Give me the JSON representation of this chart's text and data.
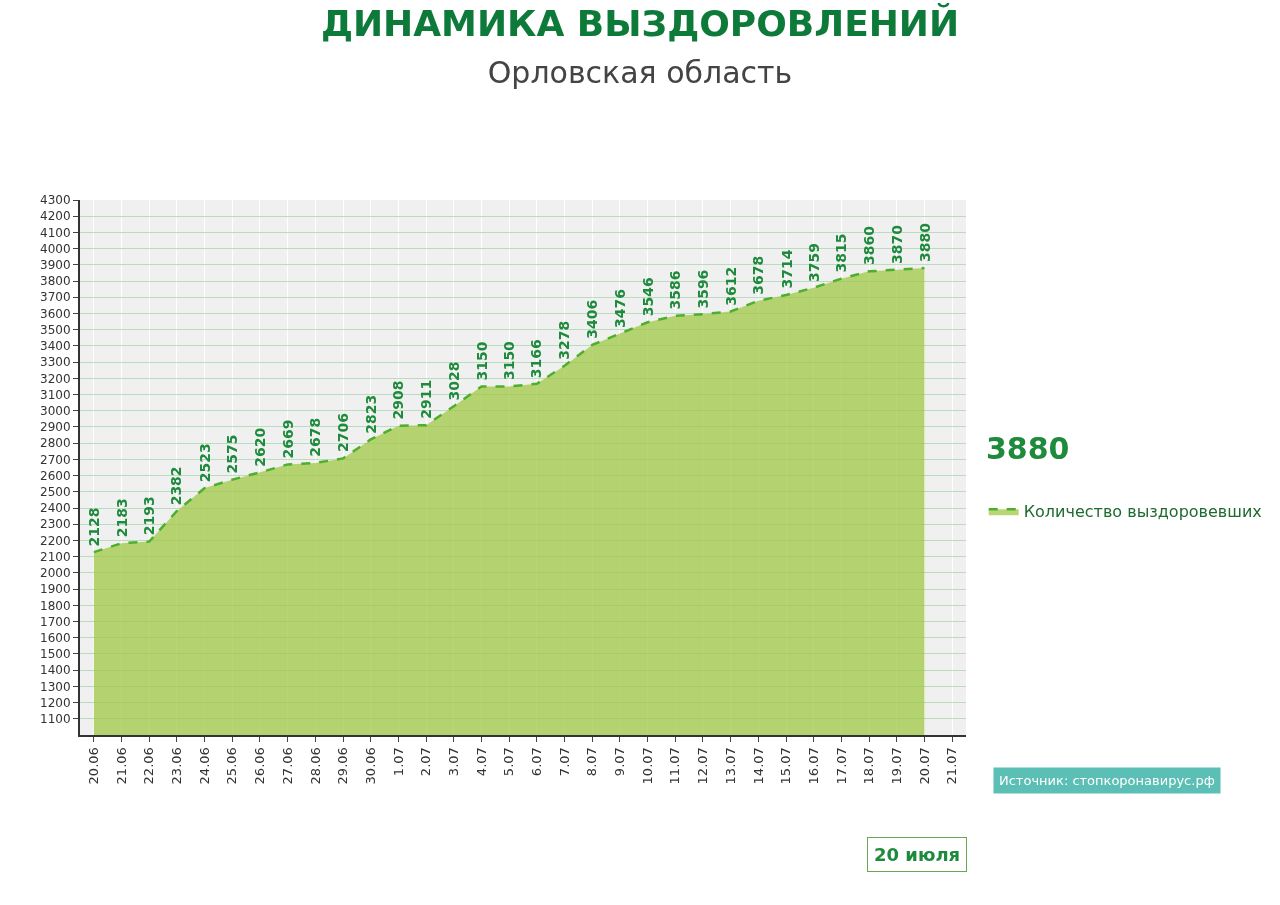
{
  "chart_data": {
    "type": "area",
    "title": "ДИНАМИКА ВЫЗДОРОВЛЕНИЙ",
    "subtitle": "Орловская область",
    "categories": [
      "20.06",
      "21.06",
      "22.06",
      "23.06",
      "24.06",
      "25.06",
      "26.06",
      "27.06",
      "28.06",
      "29.06",
      "30.06",
      "1.07",
      "2.07",
      "3.07",
      "4.07",
      "5.07",
      "6.07",
      "7.07",
      "8.07",
      "9.07",
      "10.07",
      "11.07",
      "12.07",
      "13.07",
      "14.07",
      "15.07",
      "16.07",
      "17.07",
      "18.07",
      "19.07",
      "20.07",
      "21.07"
    ],
    "series": [
      {
        "name": "Количество выздоровевших",
        "color": "#4caf2e",
        "values": [
          2128,
          2183,
          2193,
          2382,
          2523,
          2575,
          2620,
          2669,
          2678,
          2706,
          2823,
          2908,
          2911,
          3028,
          3150,
          3150,
          3166,
          3278,
          3406,
          3476,
          3546,
          3586,
          3596,
          3612,
          3678,
          3714,
          3759,
          3815,
          3860,
          3870,
          3880,
          null
        ]
      }
    ],
    "ylim": [
      1000,
      4300
    ],
    "yticks": [
      1100,
      1200,
      1300,
      1400,
      1500,
      1600,
      1700,
      1800,
      1900,
      2000,
      2100,
      2200,
      2300,
      2400,
      2500,
      2600,
      2700,
      2800,
      2900,
      3000,
      3100,
      3200,
      3300,
      3400,
      3500,
      3600,
      3700,
      3800,
      3900,
      4000,
      4100,
      4200,
      4300
    ],
    "data_labels": true,
    "grid": true,
    "legend": "right",
    "line_style": "dashed",
    "marker": "none",
    "annotations": [
      "3880",
      "20 июля",
      "Источник: стопкоронавирус.рф"
    ]
  }
}
